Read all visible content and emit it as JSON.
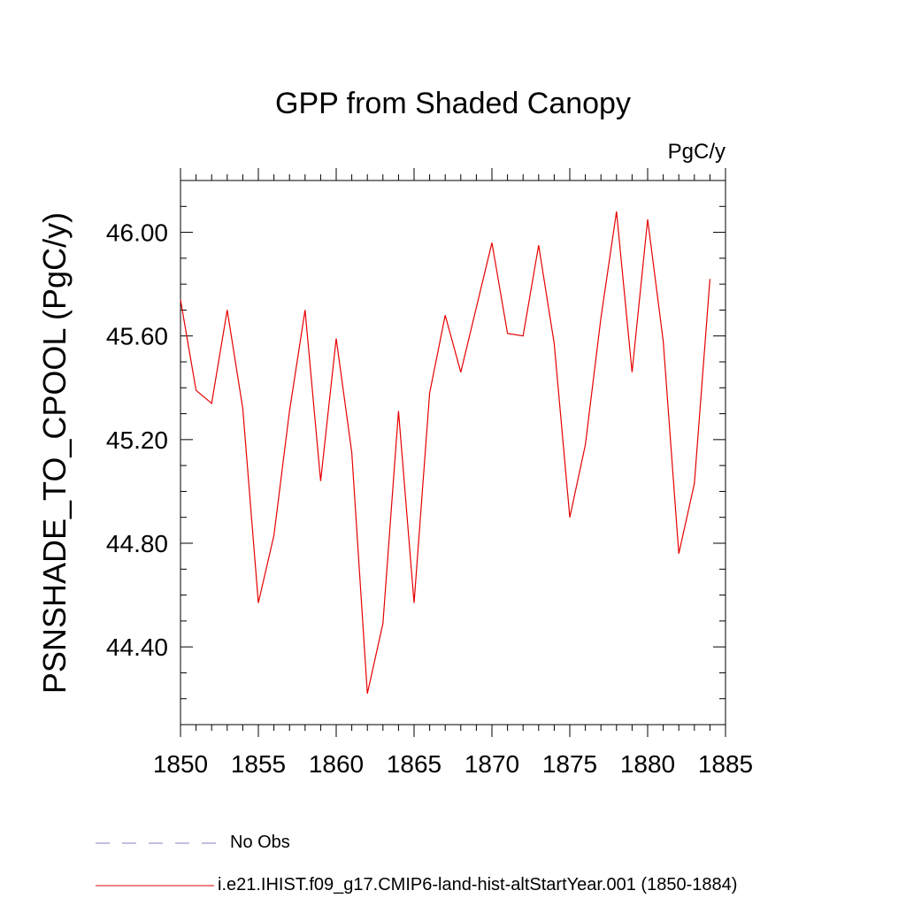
{
  "chart_data": {
    "type": "line",
    "title": "GPP from Shaded Canopy",
    "units_label": "PgC/y",
    "ylabel": "PSNSHADE_TO_CPOOL  (PgC/y)",
    "xlabel": "",
    "xlim": [
      1850,
      1885
    ],
    "ylim": [
      44.1,
      46.2
    ],
    "x_ticks": [
      1850,
      1855,
      1860,
      1865,
      1870,
      1875,
      1880,
      1885
    ],
    "x_tick_labels": [
      "1850",
      "1855",
      "1860",
      "1865",
      "1870",
      "1875",
      "1880",
      "1885"
    ],
    "y_ticks": [
      44.4,
      44.8,
      45.2,
      45.6,
      46.0
    ],
    "y_tick_labels": [
      "44.40",
      "44.80",
      "45.20",
      "45.60",
      "46.00"
    ],
    "grid": false,
    "legend_position": "bottom",
    "series": [
      {
        "name": "i.e21.IHIST.f09_g17.CMIP6-land-hist-altStartYear.001 (1850-1884)",
        "color": "#e60000",
        "style": "solid",
        "x": [
          1850,
          1851,
          1852,
          1853,
          1854,
          1855,
          1856,
          1857,
          1858,
          1859,
          1860,
          1861,
          1862,
          1863,
          1864,
          1865,
          1866,
          1867,
          1868,
          1869,
          1870,
          1871,
          1872,
          1873,
          1874,
          1875,
          1876,
          1877,
          1878,
          1879,
          1880,
          1881,
          1882,
          1883,
          1884
        ],
        "values": [
          45.74,
          45.39,
          45.34,
          45.7,
          45.32,
          44.57,
          44.83,
          45.31,
          45.7,
          45.04,
          45.59,
          45.15,
          44.22,
          44.49,
          45.31,
          44.57,
          45.38,
          45.68,
          45.46,
          45.71,
          45.96,
          45.61,
          45.6,
          45.95,
          45.57,
          44.9,
          45.18,
          45.67,
          46.08,
          45.46,
          46.05,
          45.58,
          44.76,
          45.03,
          45.82
        ]
      }
    ],
    "legend": [
      {
        "label": "No Obs",
        "color": "#7f7fbf",
        "style": "dashed"
      },
      {
        "label": "i.e21.IHIST.f09_g17.CMIP6-land-hist-altStartYear.001 (1850-1884)",
        "color": "#e60000",
        "style": "solid"
      }
    ]
  }
}
